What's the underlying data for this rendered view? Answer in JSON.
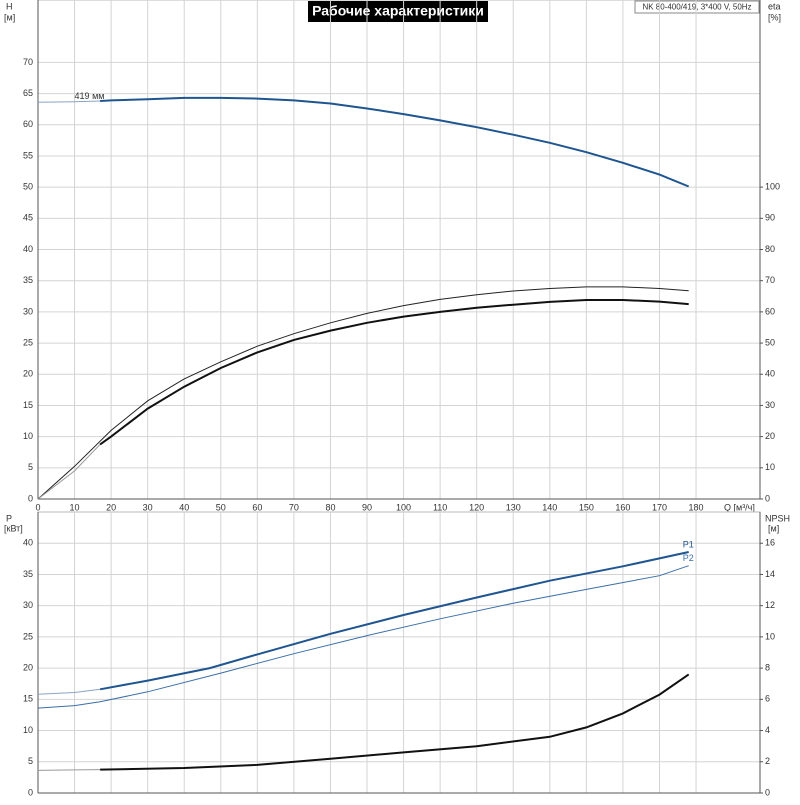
{
  "header": {
    "title": "Рабочие характеристики",
    "info": "NK 80-400/419, 3*400 V, 50Hz"
  },
  "chart_data": [
    {
      "type": "line",
      "y_label": "H",
      "y_unit": "[м]",
      "y2_label": "eta",
      "y2_unit": "[%]",
      "x_label": "Q [м³/ч]",
      "annotation": "419 мм",
      "xlim": [
        0,
        197.5
      ],
      "xticks": [
        0,
        10,
        20,
        30,
        40,
        50,
        60,
        70,
        80,
        90,
        100,
        110,
        120,
        130,
        140,
        150,
        160,
        170,
        180
      ],
      "ylim": [
        0,
        80
      ],
      "yticks": [
        0,
        5,
        10,
        15,
        20,
        25,
        30,
        35,
        40,
        45,
        50,
        55,
        60,
        65,
        70
      ],
      "y2lim": [
        0,
        160
      ],
      "y2ticks": [
        0,
        10,
        20,
        30,
        40,
        50,
        60,
        70,
        80,
        90,
        100
      ],
      "grid": true,
      "series": [
        {
          "color": "#8aa4c4",
          "width": 1,
          "x": [
            0,
            10,
            17
          ],
          "values": [
            63.6,
            63.7,
            63.8
          ]
        },
        {
          "color": "#1f5590",
          "width": 2,
          "x": [
            17,
            20,
            30,
            40,
            50,
            60,
            70,
            80,
            90,
            100,
            110,
            120,
            130,
            140,
            150,
            160,
            170,
            178
          ],
          "values": [
            63.8,
            63.9,
            64.1,
            64.3,
            64.3,
            64.2,
            63.9,
            63.4,
            62.6,
            61.7,
            60.7,
            59.6,
            58.4,
            57.1,
            55.6,
            53.9,
            52.0,
            50.1
          ]
        },
        {
          "color": "#222222",
          "width": 1,
          "axis": "y2",
          "x": [
            0,
            10,
            20,
            30,
            40,
            50,
            60,
            70,
            80,
            90,
            100,
            110,
            120,
            130,
            140,
            150,
            160,
            170,
            178
          ],
          "values": [
            0,
            10.5,
            22,
            31.5,
            38.5,
            44,
            49,
            53,
            56.5,
            59.5,
            62,
            64,
            65.5,
            66.7,
            67.5,
            68,
            68,
            67.5,
            66.8
          ]
        },
        {
          "color": "#999999",
          "width": 1,
          "axis": "y2",
          "x": [
            0,
            10,
            17
          ],
          "values": [
            0,
            9,
            17.5
          ]
        },
        {
          "color": "#111111",
          "width": 2,
          "axis": "y2",
          "x": [
            17,
            20,
            30,
            40,
            50,
            60,
            70,
            80,
            90,
            100,
            110,
            120,
            130,
            140,
            150,
            160,
            170,
            178
          ],
          "values": [
            17.5,
            20,
            29,
            36,
            42,
            47,
            51,
            54,
            56.5,
            58.5,
            60,
            61.3,
            62.3,
            63.2,
            63.8,
            63.8,
            63.3,
            62.5
          ]
        }
      ]
    },
    {
      "type": "line",
      "y_label": "P",
      "y_unit": "[кВт]",
      "y2_label": "NPSH",
      "y2_unit": "[м]",
      "xlim": [
        0,
        197.5
      ],
      "xticks": [
        0,
        10,
        20,
        30,
        40,
        50,
        60,
        70,
        80,
        90,
        100,
        110,
        120,
        130,
        140,
        150,
        160,
        170,
        180
      ],
      "ylim": [
        0,
        45
      ],
      "yticks": [
        0,
        5,
        10,
        15,
        20,
        25,
        30,
        35,
        40
      ],
      "y2lim": [
        0,
        18
      ],
      "y2ticks": [
        0,
        2,
        4,
        6,
        8,
        10,
        12,
        14,
        16
      ],
      "grid": true,
      "series": [
        {
          "color": "#8aa4c4",
          "width": 1,
          "x": [
            0,
            10,
            17
          ],
          "values": [
            15.8,
            16.1,
            16.6
          ]
        },
        {
          "name": "P1",
          "color": "#1f5590",
          "width": 2,
          "x": [
            17,
            30,
            47,
            60,
            80,
            100,
            120,
            140,
            160,
            178
          ],
          "values": [
            16.6,
            18,
            20,
            22.2,
            25.5,
            28.5,
            31.3,
            34,
            36.3,
            38.6
          ]
        },
        {
          "name": "P2",
          "color": "#3a6ea8",
          "width": 1,
          "x": [
            0,
            10,
            17,
            30,
            50,
            70,
            90,
            110,
            130,
            150,
            170,
            178
          ],
          "values": [
            13.6,
            14,
            14.6,
            16.2,
            19.2,
            22.3,
            25.2,
            27.9,
            30.4,
            32.6,
            34.8,
            36.4
          ]
        },
        {
          "color": "#999999",
          "width": 1,
          "axis": "y2",
          "x": [
            0,
            10,
            17
          ],
          "values": [
            1.45,
            1.48,
            1.5
          ]
        },
        {
          "color": "#111111",
          "width": 2,
          "axis": "y2",
          "x": [
            17,
            40,
            60,
            80,
            100,
            120,
            140,
            150,
            160,
            170,
            178
          ],
          "values": [
            1.5,
            1.6,
            1.8,
            2.2,
            2.6,
            3.0,
            3.6,
            4.2,
            5.1,
            6.3,
            7.6
          ]
        }
      ]
    }
  ]
}
